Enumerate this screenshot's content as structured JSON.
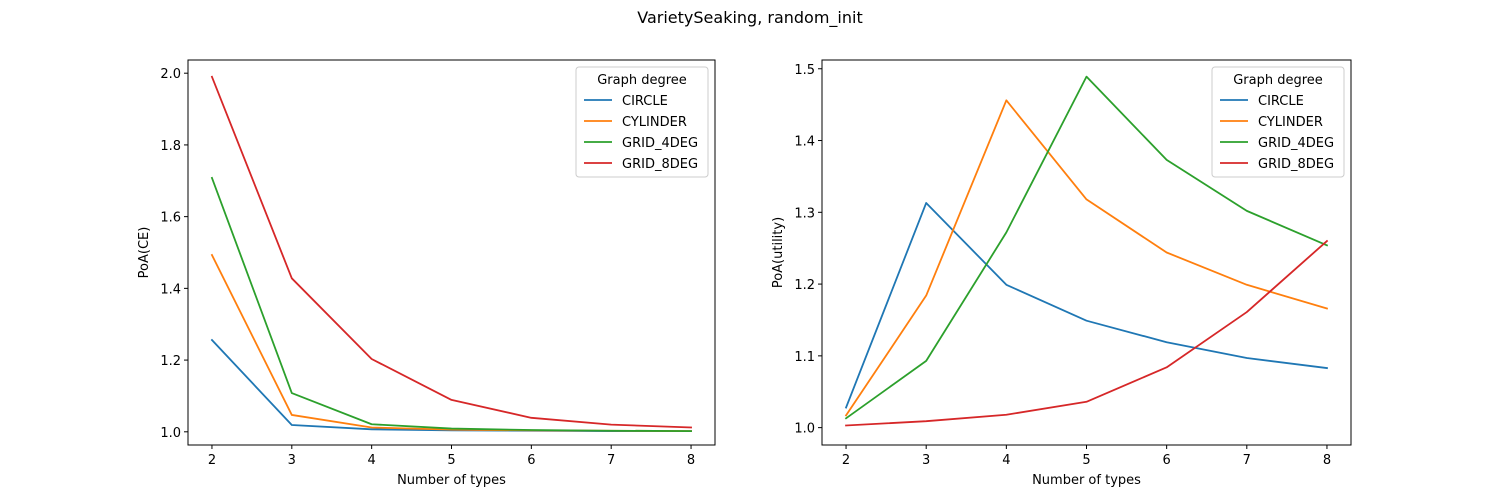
{
  "figure": {
    "suptitle": "VarietySeaking, random_init"
  },
  "chart_data": [
    {
      "type": "line",
      "xlabel": "Number of types",
      "ylabel": "PoA(CE)",
      "x": [
        2,
        3,
        4,
        5,
        6,
        7,
        8
      ],
      "xlim": [
        1.7,
        8.3
      ],
      "ylim": [
        0.9632,
        2.0368
      ],
      "xticks": [
        2,
        3,
        4,
        5,
        6,
        7,
        8
      ],
      "yticks": [
        1.0,
        1.2,
        1.4,
        1.6,
        1.8,
        2.0
      ],
      "ytick_labels": [
        "1.0",
        "1.2",
        "1.4",
        "1.6",
        "1.8",
        "2.0"
      ],
      "grid": false,
      "legend": {
        "title": "Graph degree",
        "placement": "upper right"
      },
      "series": [
        {
          "name": "CIRCLE",
          "color": "#1f77b4",
          "values": [
            1.256,
            1.019,
            1.007,
            1.004,
            1.003,
            1.002,
            1.002
          ]
        },
        {
          "name": "CYLINDER",
          "color": "#ff7f0e",
          "values": [
            1.493,
            1.047,
            1.012,
            1.006,
            1.004,
            1.003,
            1.002
          ]
        },
        {
          "name": "GRID_4DEG",
          "color": "#2ca02c",
          "values": [
            1.708,
            1.108,
            1.021,
            1.009,
            1.005,
            1.003,
            1.002
          ]
        },
        {
          "name": "GRID_8DEG",
          "color": "#d62728",
          "values": [
            1.99,
            1.428,
            1.203,
            1.089,
            1.039,
            1.02,
            1.012
          ]
        }
      ]
    },
    {
      "type": "line",
      "xlabel": "Number of types",
      "ylabel": "PoA(utility)",
      "x": [
        2,
        3,
        4,
        5,
        6,
        7,
        8
      ],
      "xlim": [
        1.7,
        8.3
      ],
      "ylim": [
        0.9758,
        1.5122
      ],
      "xticks": [
        2,
        3,
        4,
        5,
        6,
        7,
        8
      ],
      "yticks": [
        1.0,
        1.1,
        1.2,
        1.3,
        1.4,
        1.5
      ],
      "ytick_labels": [
        "1.0",
        "1.1",
        "1.2",
        "1.3",
        "1.4",
        "1.5"
      ],
      "grid": false,
      "legend": {
        "title": "Graph degree",
        "placement": "upper right"
      },
      "series": [
        {
          "name": "CIRCLE",
          "color": "#1f77b4",
          "values": [
            1.028,
            1.313,
            1.199,
            1.149,
            1.119,
            1.097,
            1.083
          ]
        },
        {
          "name": "CYLINDER",
          "color": "#ff7f0e",
          "values": [
            1.017,
            1.184,
            1.456,
            1.318,
            1.244,
            1.199,
            1.166
          ]
        },
        {
          "name": "GRID_4DEG",
          "color": "#2ca02c",
          "values": [
            1.013,
            1.093,
            1.272,
            1.489,
            1.373,
            1.302,
            1.254
          ]
        },
        {
          "name": "GRID_8DEG",
          "color": "#d62728",
          "values": [
            1.003,
            1.009,
            1.018,
            1.036,
            1.084,
            1.161,
            1.26
          ]
        }
      ]
    }
  ]
}
